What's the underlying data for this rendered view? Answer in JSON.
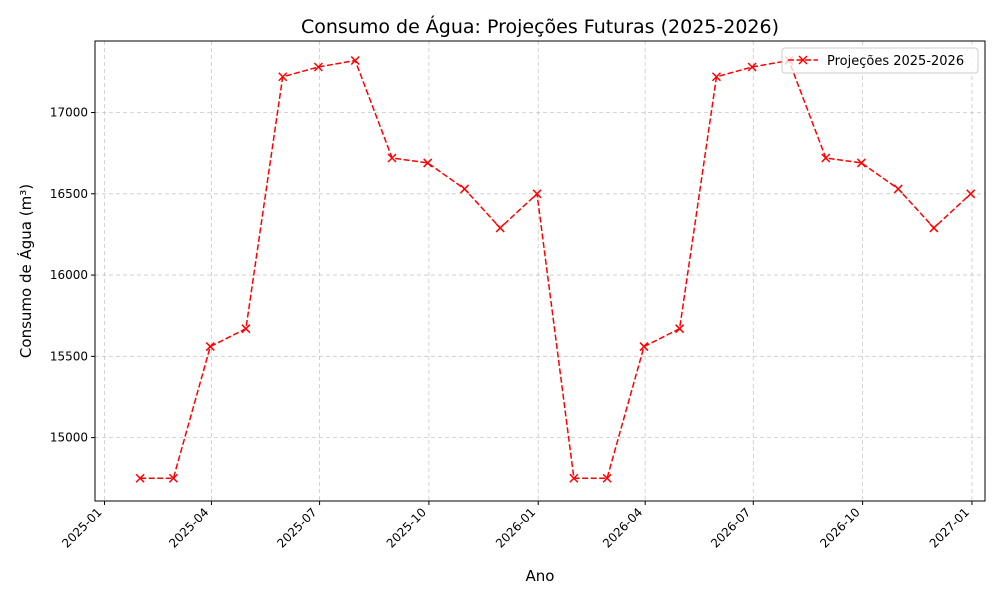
{
  "chart_data": {
    "type": "line",
    "title": "Consumo de Água: Projeções Futuras (2025-2026)",
    "xlabel": "Ano",
    "ylabel": "Consumo de Água (m³)",
    "x_ticks": [
      "2025-01",
      "2025-04",
      "2025-07",
      "2025-10",
      "2026-01",
      "2026-04",
      "2026-07",
      "2026-10",
      "2027-01"
    ],
    "y_ticks": [
      15000,
      15500,
      16000,
      16500,
      17000
    ],
    "ylim": [
      14610,
      17440
    ],
    "xlim": [
      "2024-12-24",
      "2027-01-12"
    ],
    "grid": true,
    "legend_position": "top-right",
    "series": [
      {
        "name": "Projeções 2025-2026",
        "color": "#ff0000",
        "line_style": "dashed",
        "marker": "x",
        "x": [
          "2025-01-31",
          "2025-02-28",
          "2025-03-31",
          "2025-04-30",
          "2025-05-31",
          "2025-06-30",
          "2025-07-31",
          "2025-08-31",
          "2025-09-30",
          "2025-10-31",
          "2025-11-30",
          "2025-12-31",
          "2026-01-31",
          "2026-02-28",
          "2026-03-31",
          "2026-04-30",
          "2026-05-31",
          "2026-06-30",
          "2026-07-31",
          "2026-08-31",
          "2026-09-30",
          "2026-10-31",
          "2026-11-30",
          "2026-12-31"
        ],
        "values": [
          14750,
          14750,
          15560,
          15670,
          17220,
          17280,
          17320,
          16720,
          16690,
          16530,
          16290,
          16500,
          14750,
          14750,
          15560,
          15670,
          17220,
          17280,
          17320,
          16720,
          16690,
          16530,
          16290,
          16500
        ]
      }
    ]
  }
}
